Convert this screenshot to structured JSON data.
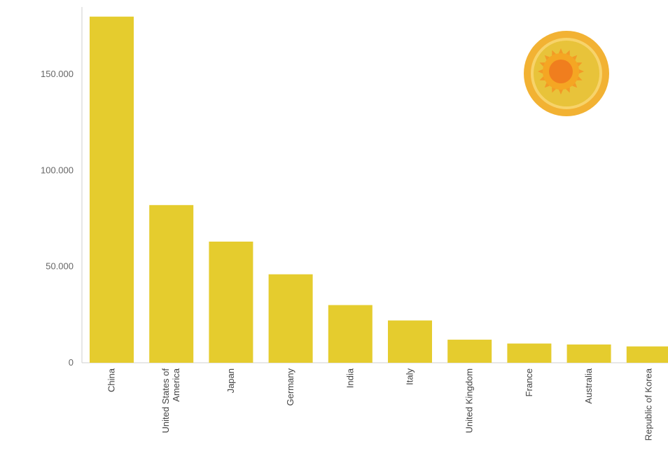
{
  "chart_data": {
    "type": "bar",
    "categories": [
      "China",
      "United States of America",
      "Japan",
      "Germany",
      "India",
      "Italy",
      "United Kingdom",
      "France",
      "Australia",
      "Republic of Korea"
    ],
    "values": [
      180000,
      82000,
      63000,
      46000,
      30000,
      22000,
      12000,
      10000,
      9500,
      8500
    ],
    "yticks": [
      "150.000",
      "100.000",
      "50.000",
      "0"
    ],
    "ytick_values": [
      150000,
      100000,
      50000,
      0
    ],
    "ylim": [
      0,
      185000
    ],
    "title": "",
    "xlabel": "",
    "ylabel": "",
    "grid": false,
    "colors": {
      "bar": "#E5CC2E",
      "axis": "#cfcfcf",
      "sun_outer": "#F2B233",
      "sun_ring": "#E8C33A",
      "sun_core": "#F5A623",
      "sun_center": "#F07E1E"
    },
    "icon": "sun-icon"
  }
}
